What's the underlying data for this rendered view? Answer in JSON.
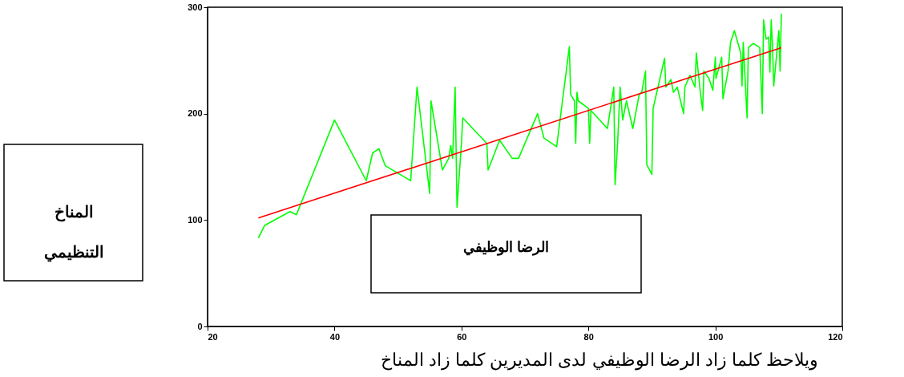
{
  "chart_data": {
    "type": "line",
    "xlabel": "الرضا الوظيفي",
    "ylabel": "المناخ التنظيمي",
    "annotations": [
      "ويلاحظ كلما زاد الرضا الوظيفي لدى المديرين كلما زاد المناخ"
    ],
    "xlim": [
      20,
      120
    ],
    "xticks": [
      20,
      40,
      60,
      80,
      100,
      120
    ],
    "ylim": [
      0,
      300
    ],
    "yticks": [
      0,
      100,
      200,
      300
    ],
    "grid": false,
    "marker": "none",
    "line_style": "solid",
    "series": [
      {
        "color": "#00ff00",
        "x": [
          28,
          29,
          33,
          34,
          40,
          45,
          46,
          47,
          48,
          52,
          53,
          55,
          55.2,
          57,
          58,
          58.3,
          58.6,
          59,
          59.3,
          60,
          60.2,
          64,
          64.2,
          66,
          68,
          69,
          72,
          73,
          75,
          77,
          77.2,
          77.8,
          78,
          78.2,
          78.4,
          80,
          80.2,
          80.4,
          83,
          84,
          84.2,
          84.6,
          85,
          85.4,
          86,
          87,
          88,
          88.4,
          89,
          89.2,
          90,
          90.2,
          92,
          92.2,
          93,
          93.4,
          94,
          95,
          95.2,
          96,
          96.8,
          97,
          97.6,
          98,
          98.2,
          99,
          99.6,
          100,
          100.1,
          101,
          101.2,
          102,
          102.4,
          103,
          104,
          104.2,
          104.4,
          105,
          105.2,
          106,
          107,
          107.4,
          107.6,
          108,
          108.4,
          108.6,
          108.8,
          109,
          109.2,
          110,
          110.2,
          110.4
        ],
        "values": [
          83,
          95,
          108,
          105,
          194,
          137,
          163,
          167,
          151,
          137,
          225,
          125,
          212,
          147,
          158,
          170,
          158,
          225,
          112,
          172,
          196,
          172,
          147,
          175,
          158,
          158,
          200,
          177,
          169,
          263,
          218,
          212,
          172,
          220,
          212,
          205,
          172,
          203,
          186,
          225,
          133,
          172,
          225,
          194,
          212,
          186,
          218,
          220,
          240,
          152,
          143,
          205,
          252,
          225,
          232,
          220,
          225,
          200,
          225,
          236,
          225,
          257,
          222,
          203,
          240,
          233,
          222,
          253,
          233,
          253,
          214,
          240,
          267,
          278,
          257,
          226,
          267,
          196,
          262,
          266,
          262,
          200,
          288,
          270,
          272,
          239,
          288,
          265,
          226,
          278,
          240,
          294
        ]
      },
      {
        "color": "#ff0000",
        "x": [
          28,
          110.4
        ],
        "values": [
          102,
          262
        ]
      }
    ]
  }
}
